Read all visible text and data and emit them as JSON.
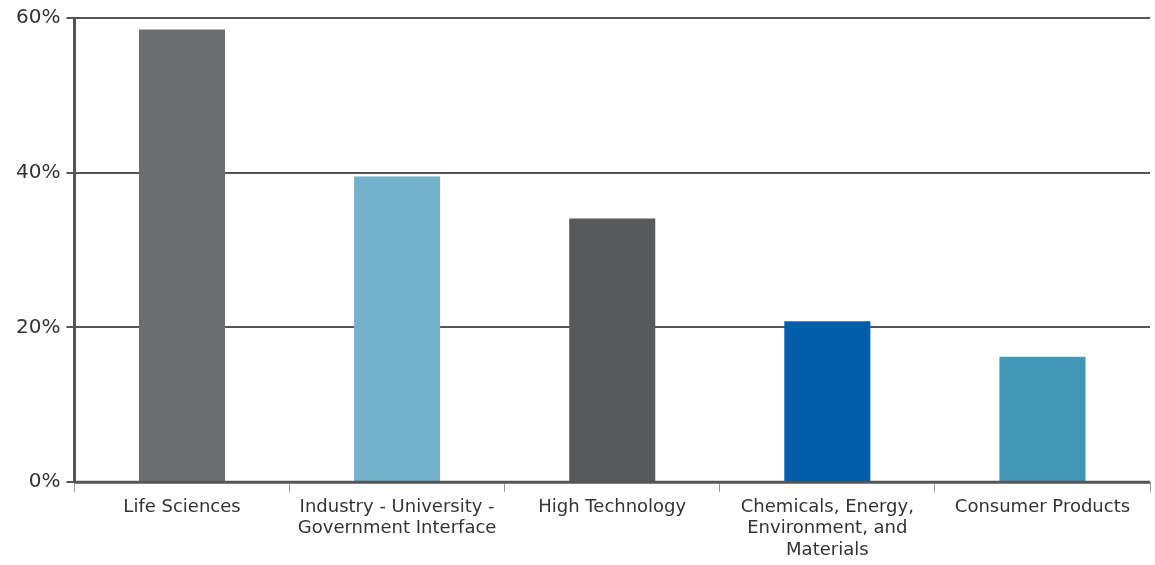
{
  "chart_data": {
    "type": "bar",
    "categories": [
      "Life Sciences",
      "Industry - University - Government Interface",
      "High Technology",
      "Chemicals, Energy, Environment, and Materials",
      "Consumer Products"
    ],
    "values": [
      58.5,
      39.5,
      34.1,
      20.8,
      16.2
    ],
    "colors": [
      "#6d6e70",
      "#74b1cb",
      "#58595b",
      "#005eab",
      "#4197b6"
    ],
    "ylim": [
      0,
      60
    ],
    "yticks": [
      {
        "value": 0,
        "label": "0%"
      },
      {
        "value": 20,
        "label": "20%"
      },
      {
        "value": 40,
        "label": "40%"
      },
      {
        "value": 60,
        "label": "60%"
      }
    ],
    "grid": "y",
    "legend": false
  }
}
